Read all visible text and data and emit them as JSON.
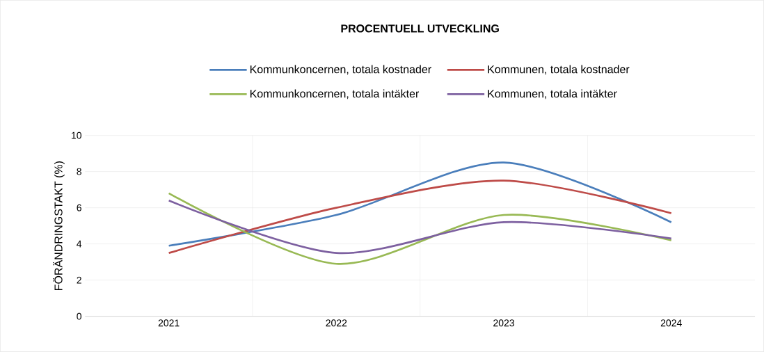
{
  "chart_data": {
    "type": "line",
    "title": "PROCENTUELL UTVECKLING",
    "ylabel": "FÖRÄNDRINGSTAKT (%)",
    "categories": [
      "2021",
      "2022",
      "2023",
      "2024"
    ],
    "series": [
      {
        "name": "Kommunkoncernen, totala kostnader",
        "color": "#4a7ebb",
        "values": [
          3.9,
          5.6,
          8.5,
          5.2
        ]
      },
      {
        "name": "Kommunen, totala kostnader",
        "color": "#be4b48",
        "values": [
          3.5,
          6.0,
          7.5,
          5.7
        ]
      },
      {
        "name": "Kommunkoncernen, totala intäkter",
        "color": "#98b954",
        "values": [
          6.8,
          2.9,
          5.6,
          4.2
        ]
      },
      {
        "name": "Kommunen, totala intäkter",
        "color": "#7d60a0",
        "values": [
          6.4,
          3.5,
          5.2,
          4.3
        ]
      }
    ],
    "ylim": [
      0,
      10
    ],
    "yticks": [
      0,
      2,
      4,
      6,
      8,
      10
    ],
    "grid": true,
    "legend": "top",
    "marker": "none",
    "line_style": "solid"
  }
}
